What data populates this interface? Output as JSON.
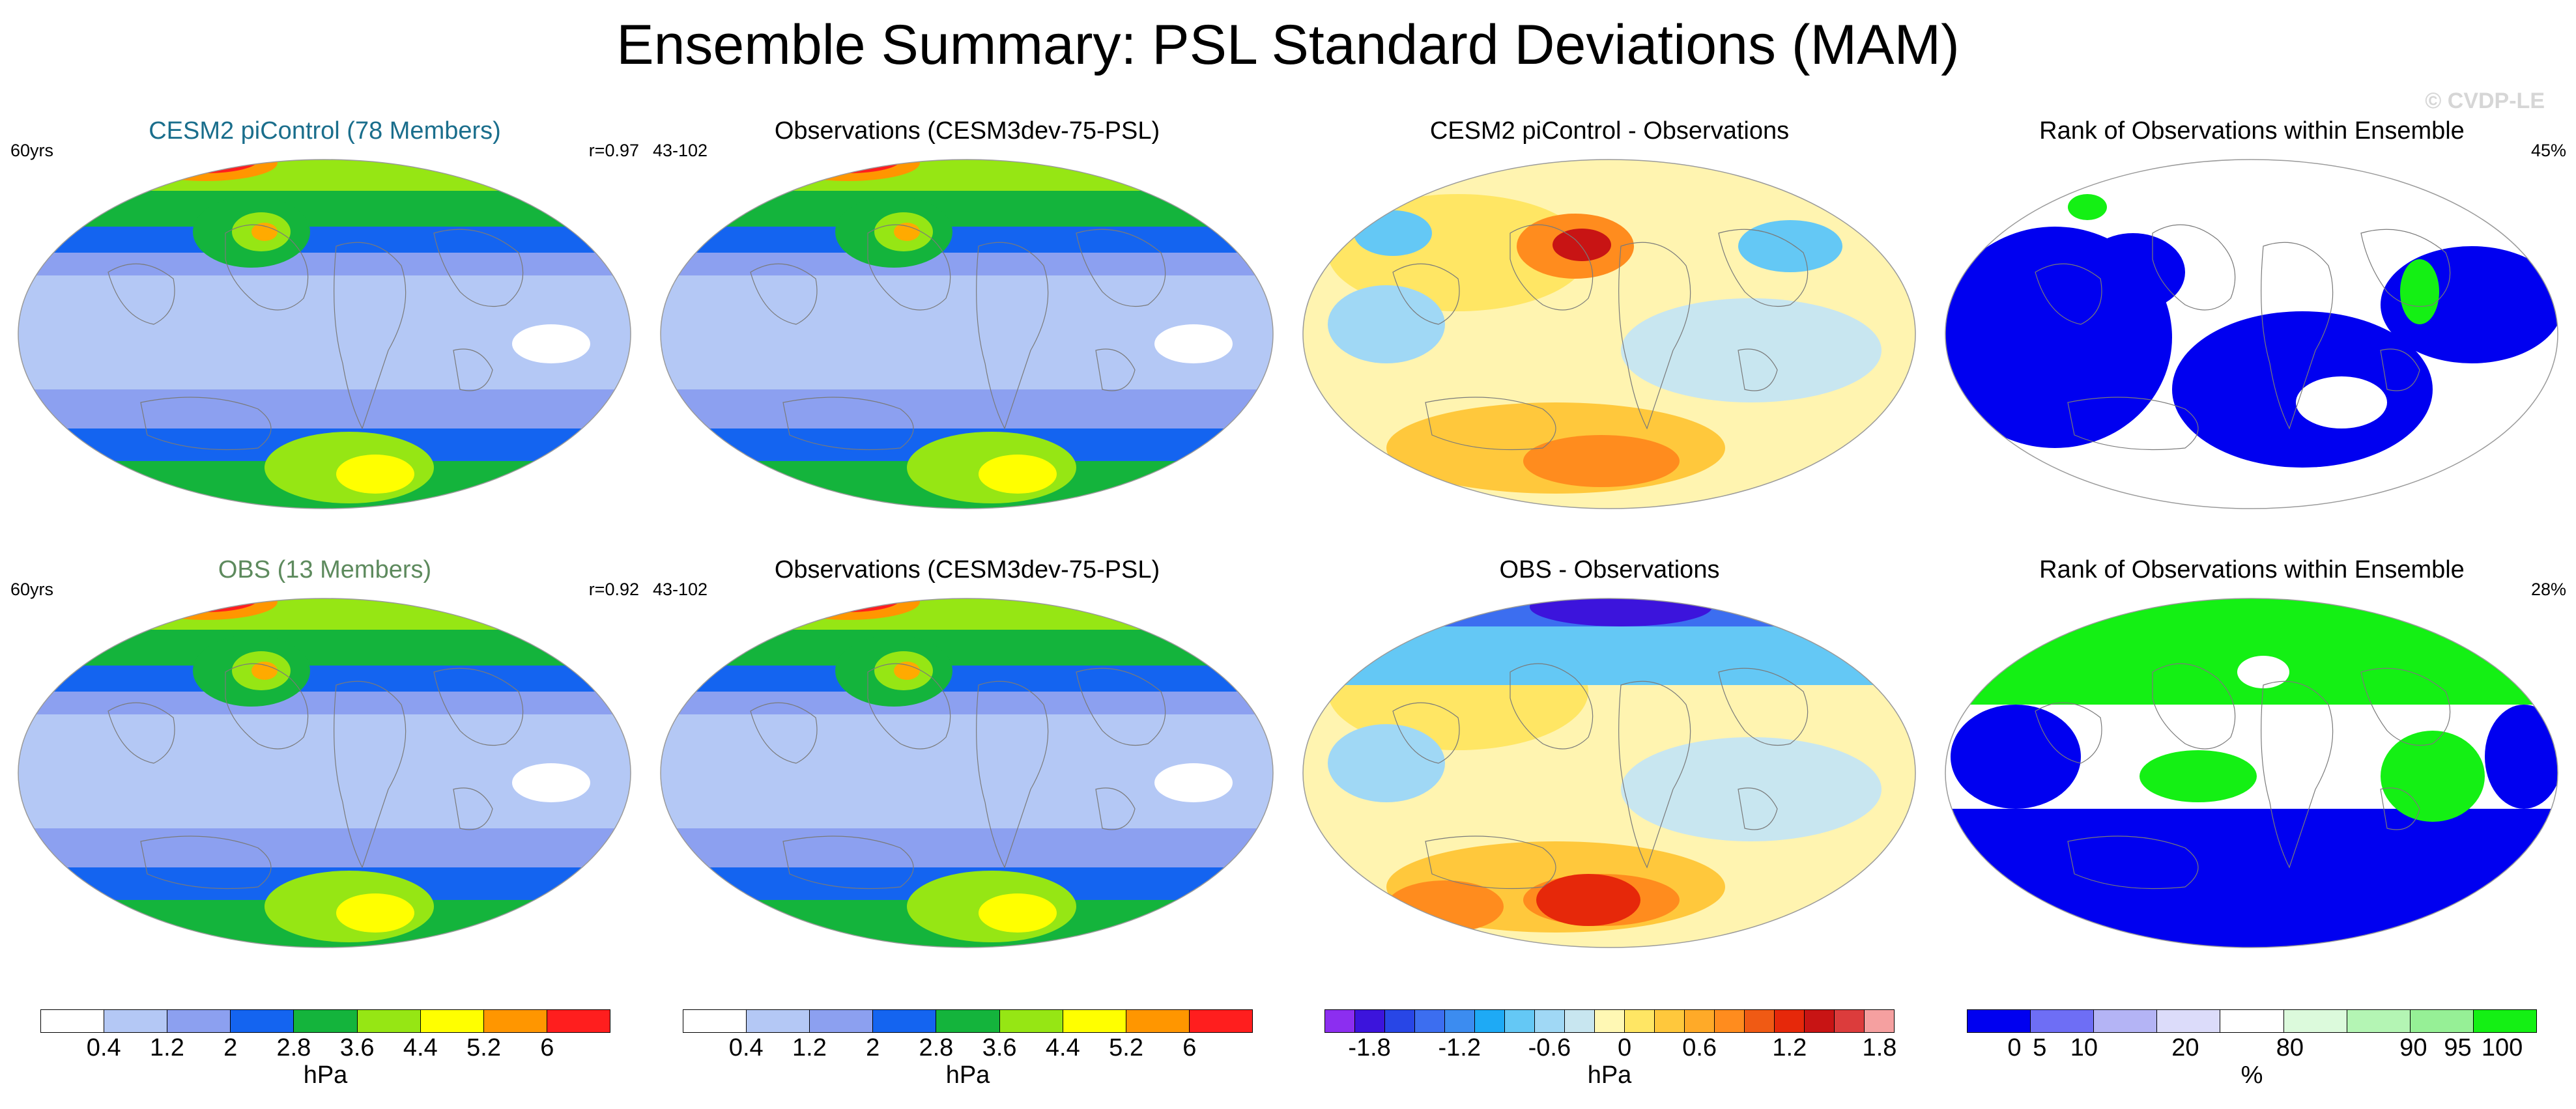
{
  "title": "Ensemble Summary: PSL Standard Deviations (MAM)",
  "watermark": "© CVDP-LE",
  "panels": [
    {
      "title": "CESM2 piControl (78 Members)",
      "title_color": "#1a6e8c",
      "left_label": "60yrs",
      "right_label": "r=0.97",
      "map_type": "std"
    },
    {
      "title": "Observations (CESM3dev-75-PSL)",
      "title_color": "#000000",
      "left_label": "43-102",
      "right_label": "",
      "map_type": "std"
    },
    {
      "title": "CESM2 piControl - Observations",
      "title_color": "#000000",
      "left_label": "",
      "right_label": "",
      "map_type": "diff"
    },
    {
      "title": "Rank of Observations within Ensemble",
      "title_color": "#000000",
      "left_label": "",
      "right_label": "45%",
      "map_type": "rank"
    },
    {
      "title": "OBS (13 Members)",
      "title_color": "#5d8a5d",
      "left_label": "60yrs",
      "right_label": "r=0.92",
      "map_type": "std"
    },
    {
      "title": "Observations (CESM3dev-75-PSL)",
      "title_color": "#000000",
      "left_label": "43-102",
      "right_label": "",
      "map_type": "std"
    },
    {
      "title": "OBS - Observations",
      "title_color": "#000000",
      "left_label": "",
      "right_label": "",
      "map_type": "diff2"
    },
    {
      "title": "Rank of Observations within Ensemble",
      "title_color": "#000000",
      "left_label": "",
      "right_label": "28%",
      "map_type": "rank2"
    }
  ],
  "colorbars": [
    {
      "unit": "hPa",
      "colors": [
        "#ffffff",
        "#b4c8f5",
        "#8ca0f0",
        "#1464f0",
        "#14b43c",
        "#96e614",
        "#ffff00",
        "#ff9600",
        "#ff1e1e"
      ],
      "ticks": [
        "0.4",
        "1.2",
        "2",
        "2.8",
        "3.6",
        "4.4",
        "5.2",
        "6"
      ],
      "tick_positions": [
        1,
        2,
        3,
        4,
        5,
        6,
        7,
        8
      ]
    },
    {
      "unit": "hPa",
      "colors": [
        "#ffffff",
        "#b4c8f5",
        "#8ca0f0",
        "#1464f0",
        "#14b43c",
        "#96e614",
        "#ffff00",
        "#ff9600",
        "#ff1e1e"
      ],
      "ticks": [
        "0.4",
        "1.2",
        "2",
        "2.8",
        "3.6",
        "4.4",
        "5.2",
        "6"
      ],
      "tick_positions": [
        1,
        2,
        3,
        4,
        5,
        6,
        7,
        8
      ]
    },
    {
      "unit": "hPa",
      "colors": [
        "#8c2ef0",
        "#3c14dc",
        "#2846e6",
        "#3c6ef0",
        "#3c8cf0",
        "#1eaaf5",
        "#64c8f5",
        "#a0d8f5",
        "#c8e6f0",
        "#fff8b4",
        "#ffe664",
        "#ffc83c",
        "#ffaa28",
        "#ff8c1e",
        "#f05a14",
        "#e6280a",
        "#c81414",
        "#dc3c3c",
        "#f5a0a0"
      ],
      "ticks": [
        "-1.8",
        "-1.2",
        "-0.6",
        "0",
        "0.6",
        "1.2",
        "1.8"
      ],
      "tick_positions": [
        1.5,
        4.5,
        7.5,
        10,
        12.5,
        15.5,
        18.5
      ]
    },
    {
      "unit": "%",
      "colors": [
        "#0000f0",
        "#6e6ef5",
        "#b4b4f5",
        "#dcdcfa",
        "#ffffff",
        "#dcfadc",
        "#b4f5b4",
        "#96f096",
        "#14f014"
      ],
      "ticks": [
        "0",
        "5",
        "10",
        "20",
        "80",
        "90",
        "95",
        "100"
      ],
      "tick_positions": [
        0.75,
        1.15,
        1.85,
        3.45,
        5.1,
        7.05,
        7.75,
        8.45
      ]
    }
  ]
}
